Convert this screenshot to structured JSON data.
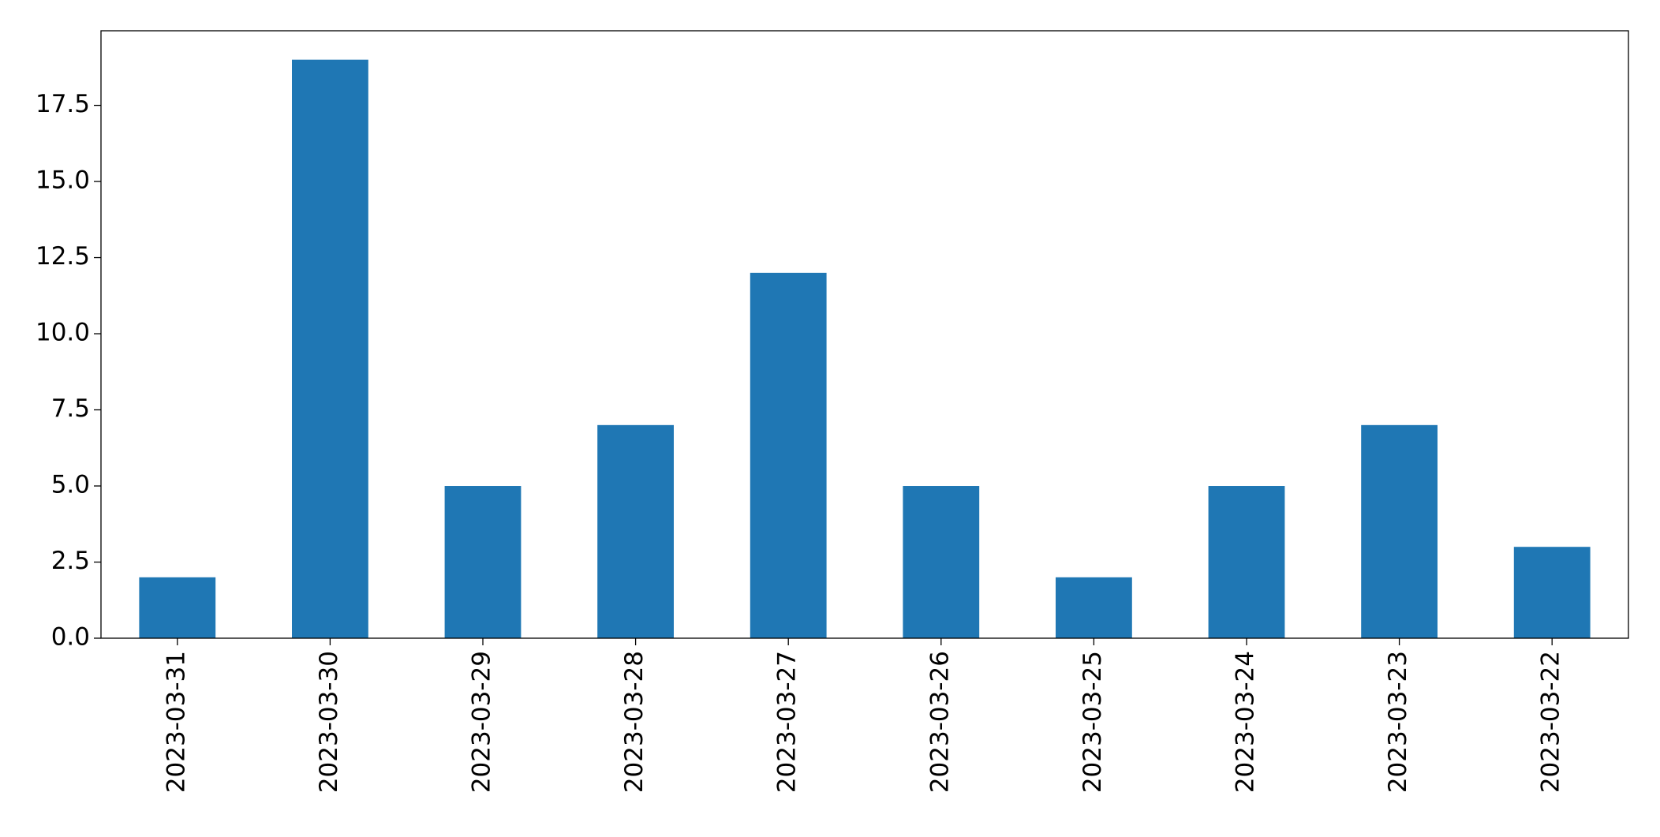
{
  "chart_data": {
    "type": "bar",
    "categories": [
      "2023-03-31",
      "2023-03-30",
      "2023-03-29",
      "2023-03-28",
      "2023-03-27",
      "2023-03-26",
      "2023-03-25",
      "2023-03-24",
      "2023-03-23",
      "2023-03-22"
    ],
    "values": [
      2,
      19,
      5,
      7,
      12,
      5,
      2,
      5,
      7,
      3
    ],
    "color": "#1f77b4",
    "ylim": [
      0,
      19.95
    ],
    "yticks": [
      {
        "value": 0,
        "label": "0.0"
      },
      2.5,
      {
        "value": 5,
        "label": "5.0"
      },
      7.5,
      {
        "value": 10,
        "label": "10.0"
      },
      12.5,
      {
        "value": 15,
        "label": "15.0"
      },
      17.5
    ],
    "grid": false
  }
}
